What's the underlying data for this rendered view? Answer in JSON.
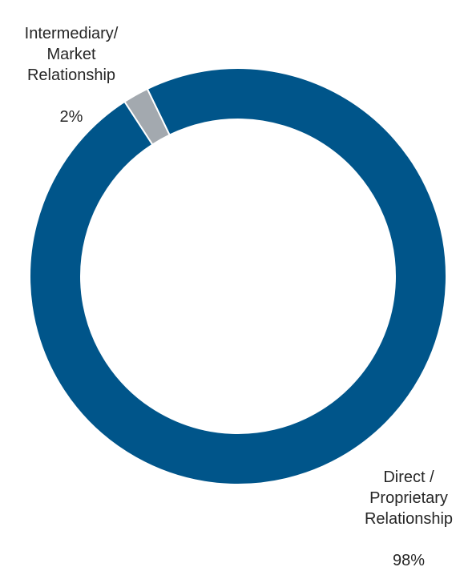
{
  "chart_data": {
    "type": "pie",
    "variant": "donut",
    "title": "",
    "legend": "none",
    "slices": [
      {
        "label": "Intermediary/\nMarket\nRelationship",
        "value": 2,
        "value_label": "2%",
        "color": "#A3A9AF"
      },
      {
        "label": "Direct /\nProprietary\nRelationship",
        "value": 98,
        "value_label": "98%",
        "color": "#00558A"
      }
    ]
  }
}
